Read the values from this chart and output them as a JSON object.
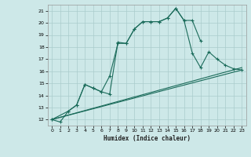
{
  "xlabel": "Humidex (Indice chaleur)",
  "xlim": [
    -0.5,
    23.5
  ],
  "ylim": [
    11.5,
    21.5
  ],
  "xticks": [
    0,
    1,
    2,
    3,
    4,
    5,
    6,
    7,
    8,
    9,
    10,
    11,
    12,
    13,
    14,
    15,
    16,
    17,
    18,
    19,
    20,
    21,
    22,
    23
  ],
  "yticks": [
    12,
    13,
    14,
    15,
    16,
    17,
    18,
    19,
    20,
    21
  ],
  "bg_color": "#cde8e8",
  "line_color": "#1a6b5a",
  "grid_color": "#aacccc",
  "line1_x": [
    0,
    1,
    2,
    3,
    4,
    5,
    6,
    7,
    8,
    9,
    10,
    11,
    12,
    13,
    14,
    15,
    16,
    17,
    18
  ],
  "line1_y": [
    12.0,
    11.8,
    12.7,
    13.2,
    14.9,
    14.6,
    14.3,
    14.1,
    18.4,
    18.3,
    19.5,
    20.1,
    20.1,
    20.1,
    20.4,
    21.2,
    20.2,
    20.2,
    18.5
  ],
  "line2_x": [
    0,
    2,
    3,
    4,
    5,
    6,
    7,
    8,
    9,
    10,
    11,
    12,
    13,
    14,
    15,
    16,
    17,
    18,
    19,
    20,
    21,
    22,
    23
  ],
  "line2_y": [
    12.0,
    12.7,
    13.2,
    14.9,
    14.6,
    14.3,
    15.6,
    18.3,
    18.3,
    19.5,
    20.1,
    20.1,
    20.1,
    20.4,
    21.2,
    20.2,
    17.5,
    16.3,
    17.6,
    17.0,
    16.5,
    16.2,
    16.1
  ],
  "line3_x": [
    0,
    23
  ],
  "line3_y": [
    12.0,
    16.3
  ],
  "line4_x": [
    0,
    23
  ],
  "line4_y": [
    12.0,
    16.1
  ]
}
